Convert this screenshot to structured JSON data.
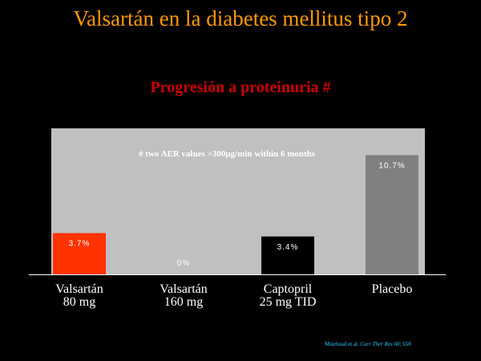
{
  "slide_title": "Valsartán en la diabetes mellitus tipo 2",
  "citation": {
    "authors": "Muirhead et al.",
    "journal": "Curr Ther Res",
    "ref": "60; 650"
  },
  "colors": {
    "background": "#000000",
    "plot_area": "#c0c0c0",
    "title": "#ff9900",
    "chart_title": "#cc0000"
  },
  "chart_data": {
    "type": "bar",
    "title": "Progresión a proteinuria #",
    "annotation": "# two AER values >300µg/min within 6 months",
    "categories": [
      [
        "Valsartán",
        "80 mg"
      ],
      [
        "Valsartán",
        "160 mg"
      ],
      [
        "Captopril",
        "25 mg TID"
      ],
      [
        "Placebo"
      ]
    ],
    "values": [
      3.7,
      0,
      3.4,
      10.7
    ],
    "value_labels": [
      "3.7%",
      "0%",
      "3.4%",
      "10.7%"
    ],
    "bar_colors": [
      "#ff3300",
      "#c0c0c0",
      "#000000",
      "#808080"
    ],
    "label_colors": [
      "#ffffff",
      "#ffffff",
      "#ffffff",
      "#ffffff"
    ],
    "ylim": [
      0,
      13.1
    ],
    "grid": false
  }
}
